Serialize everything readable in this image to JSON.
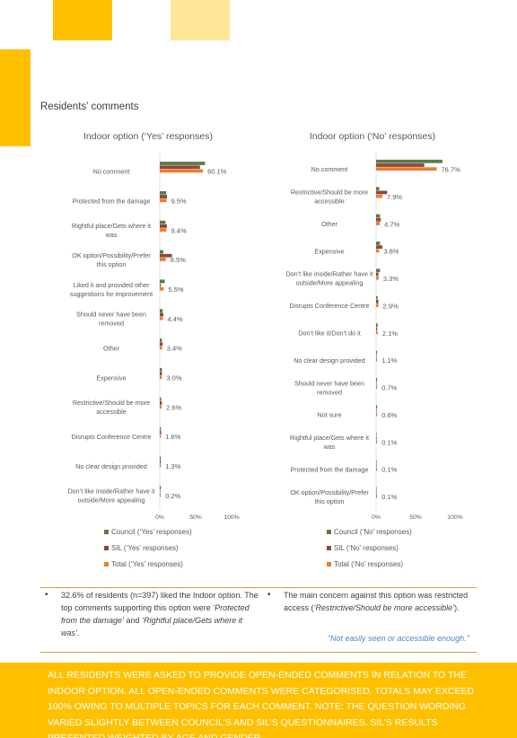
{
  "section_title": "Residents’ comments",
  "charts": [
    {
      "title": "Indoor option (‘Yes’ responses)",
      "legend": [
        "Council (‘Yes’ responses)",
        "SIL (‘Yes’ responses)",
        "Total (‘Yes’ responses)"
      ]
    },
    {
      "title": "Indoor option (‘No’ responses)",
      "legend": [
        "Council (‘No’ responses)",
        "SIL (‘No’ responses)",
        "Total (‘No’ responses)"
      ]
    }
  ],
  "series_colors": {
    "council": "#5B7B4B",
    "sil": "#8C4A3C",
    "total": "#ED7D31"
  },
  "chart_data": [
    {
      "type": "bar",
      "orientation": "horizontal",
      "title": "Indoor option (‘Yes’ responses)",
      "categories": [
        "No comment",
        "Protected from the damage",
        "Rightful place/Gets where it was",
        "OK option/Possibility/Prefer this option",
        "Liked it and provided other suggestions for improvement",
        "Should never have been removed",
        "Other",
        "Expensive",
        "Restrictive/Should be more accessible",
        "Disrupts Conference Centre",
        "No clear design provided",
        "Don’t like inside/Rather have it outside/More appealing"
      ],
      "category_lines": [
        [
          "No comment"
        ],
        [
          "Protected from the damage"
        ],
        [
          "Rightful place/Gets where it",
          "was"
        ],
        [
          "OK option/Possibility/Prefer",
          "this option"
        ],
        [
          "Liked it and provided other",
          "suggestions for improvement"
        ],
        [
          "Should never have been",
          "removed"
        ],
        [
          "Other"
        ],
        [
          "Expensive"
        ],
        [
          "Restrictive/Should be more",
          "accessible"
        ],
        [
          "Disrupts Conference Centre"
        ],
        [
          "No clear design provided"
        ],
        [
          "Don’t like inside/Rather have it",
          "outside/More appealing"
        ]
      ],
      "series": [
        {
          "name": "Council (‘Yes’ responses)",
          "values": [
            63,
            9,
            8,
            5,
            7,
            4,
            3,
            3,
            2,
            1,
            1,
            0.5
          ]
        },
        {
          "name": "SIL (‘Yes’ responses)",
          "values": [
            56,
            10,
            10,
            17,
            1,
            5,
            4,
            3,
            3,
            2,
            1,
            0
          ]
        },
        {
          "name": "Total (‘Yes’ responses)",
          "values": [
            60.1,
            9.5,
            9.4,
            8.5,
            5.5,
            4.4,
            3.4,
            3.0,
            2.6,
            1.6,
            1.3,
            0.2
          ]
        }
      ],
      "data_labels": [
        "60.1%",
        "9.5%",
        "9.4%",
        "8.5%",
        "5.5%",
        "4.4%",
        "3.4%",
        "3.0%",
        "2.6%",
        "1.6%",
        "1.3%",
        "0.2%"
      ],
      "xlim": [
        0,
        100
      ],
      "xticks": [
        "0%",
        "50%",
        "100%"
      ],
      "legend_position": "bottom"
    },
    {
      "type": "bar",
      "orientation": "horizontal",
      "title": "Indoor option (‘No’ responses)",
      "categories": [
        "No comment",
        "Restrictive/Should be more accessible",
        "Other",
        "Expensive",
        "Don’t like inside/Rather have it outside/More appealing",
        "Disrupts Conference Centre",
        "Don’t like it/Don’t do it",
        "No clear design provided",
        "Should never have been removed",
        "Not sure",
        "Rightful place/Gets where it was",
        "Protected from the damage",
        "OK option/Possibility/Prefer this option"
      ],
      "category_lines": [
        [
          "No comment"
        ],
        [
          "Restrictive/Should be more",
          "accessible"
        ],
        [
          "Other"
        ],
        [
          "Expensive"
        ],
        [
          "Don’t like inside/Rather have it",
          "outside/More appealing"
        ],
        [
          "Disrupts Conference Centre"
        ],
        [
          "Don’t like it/Don’t do it"
        ],
        [
          "No clear design provided"
        ],
        [
          "Should never have been",
          "removed"
        ],
        [
          "Not sure"
        ],
        [
          "Rightful place/Gets where it",
          "was"
        ],
        [
          "Protected from the damage"
        ],
        [
          "OK option/Possibility/Prefer",
          "this option"
        ]
      ],
      "series": [
        {
          "name": "Council (‘No’ responses)",
          "values": [
            84,
            4,
            5,
            5,
            5,
            2,
            2,
            1,
            1,
            0.5,
            0,
            0,
            0
          ]
        },
        {
          "name": "SIL (‘No’ responses)",
          "values": [
            61,
            14,
            6,
            8,
            3,
            3,
            1,
            0,
            0,
            0,
            0,
            0,
            0
          ]
        },
        {
          "name": "Total (‘No’ responses)",
          "values": [
            76.7,
            7.9,
            4.7,
            3.8,
            3.3,
            2.9,
            2.1,
            1.1,
            0.7,
            0.6,
            0.1,
            0.1,
            0.1
          ]
        }
      ],
      "data_labels": [
        "76.7%",
        "7.9%",
        "4.7%",
        "3.8%",
        "3.3%",
        "2.9%",
        "2.1%",
        "1.1%",
        "0.7%",
        "0.6%",
        "0.1%",
        "0.1%",
        "0.1%"
      ],
      "xlim": [
        0,
        100
      ],
      "xticks": [
        "0%",
        "50%",
        "100%"
      ],
      "legend_position": "bottom"
    }
  ],
  "bullets": {
    "left": {
      "pre": "32.6% of residents (n=397) liked the Indoor option. The top comments supporting this option were ",
      "em1": "‘Protected from the damage’",
      "mid": " and ",
      "em2": "‘Rightful place/Gets where it was’",
      "post": "."
    },
    "right": {
      "pre": "The main concern against this option was restricted access (",
      "em1": "‘Restrictive/Should be more accessible’",
      "post": ")."
    },
    "dot": "•",
    "quote": "“Not easily seen or accessible enough.”"
  },
  "footer": "All residents were asked to provide open-ended comments in relation to the Indoor option. All open-ended comments were categorised. Totals may exceed 100% owing to multiple topics for each comment. Note: the question wording varied slightly between Council’s and SIL’s questionnaires. SIL’s results presented weighted by age and gender."
}
